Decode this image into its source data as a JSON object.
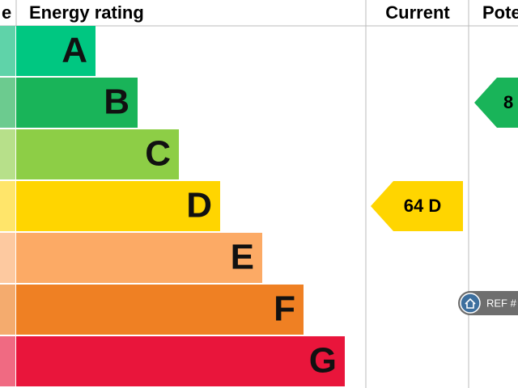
{
  "header": {
    "score": "e",
    "energy_rating": "Energy rating",
    "current": "Current",
    "potential": "Pote"
  },
  "ratings": [
    "A",
    "B",
    "C",
    "D",
    "E",
    "F",
    "G"
  ],
  "current": {
    "label": "64 D"
  },
  "potential": {
    "label": "8"
  },
  "watermark": "REF #"
}
